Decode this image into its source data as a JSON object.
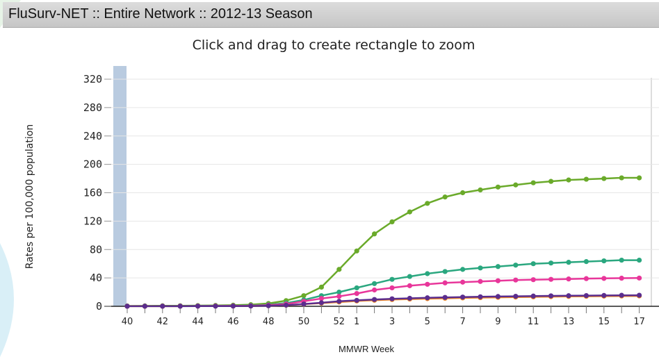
{
  "window": {
    "title": "FluSurv-NET :: Entire Network :: 2012-13 Season"
  },
  "chart_data": {
    "type": "line",
    "subtitle": "Click and drag to create rectangle to zoom",
    "xlabel": "MMWR Week",
    "ylabel": "Rates per 100,000 population",
    "ylim": [
      0,
      320
    ],
    "yticks": [
      0,
      40,
      80,
      120,
      160,
      200,
      240,
      280,
      320
    ],
    "x": [
      40,
      41,
      42,
      43,
      44,
      45,
      46,
      47,
      48,
      49,
      50,
      51,
      52,
      1,
      2,
      3,
      4,
      5,
      6,
      7,
      8,
      9,
      10,
      11,
      12,
      13,
      14,
      15,
      16,
      17
    ],
    "xtick_labels": [
      "40",
      "42",
      "44",
      "46",
      "48",
      "50",
      "52",
      "1",
      "3",
      "5",
      "7",
      "9",
      "11",
      "13",
      "15",
      "17"
    ],
    "grid": true,
    "legend": "none",
    "colors": [
      "#6aaa2a",
      "#2aa77f",
      "#e8369a",
      "#f08a24",
      "#5b2d8e"
    ],
    "series": [
      {
        "values": [
          0.5,
          0.6,
          0.7,
          0.8,
          1.0,
          1.2,
          1.6,
          2.3,
          4,
          8,
          15,
          27,
          52,
          78,
          102,
          119,
          133,
          145,
          154,
          160,
          164,
          168,
          171,
          174,
          176,
          178,
          179,
          180,
          181,
          181
        ]
      },
      {
        "values": [
          0.3,
          0.3,
          0.4,
          0.4,
          0.5,
          0.6,
          0.8,
          1.1,
          2.2,
          4.5,
          9,
          15,
          20,
          26,
          32,
          38,
          42,
          46,
          49,
          52,
          54,
          56,
          58,
          60,
          61,
          62,
          63,
          64,
          65,
          65
        ]
      },
      {
        "values": [
          0.2,
          0.2,
          0.3,
          0.3,
          0.4,
          0.5,
          0.6,
          0.8,
          1.6,
          3.2,
          7,
          11,
          14,
          18,
          23,
          26,
          29,
          31,
          33,
          34,
          35,
          36,
          37,
          37.5,
          38,
          38.5,
          39,
          39.3,
          39.6,
          39.8
        ]
      },
      {
        "values": [
          0.1,
          0.1,
          0.1,
          0.2,
          0.2,
          0.3,
          0.3,
          0.4,
          0.8,
          1.5,
          3,
          4.5,
          6,
          7.5,
          8.5,
          9.5,
          10.2,
          10.8,
          11.3,
          11.8,
          12.2,
          12.6,
          13,
          13.3,
          13.6,
          13.9,
          14.1,
          14.3,
          14.5,
          14.6
        ]
      },
      {
        "values": [
          0.1,
          0.1,
          0.1,
          0.1,
          0.2,
          0.2,
          0.3,
          0.4,
          0.8,
          1.6,
          3.2,
          5,
          7,
          8.4,
          9.6,
          10.6,
          11.3,
          12,
          12.5,
          13,
          13.4,
          13.8,
          14.1,
          14.4,
          14.7,
          14.9,
          15.1,
          15.3,
          15.5,
          15.6
        ]
      }
    ]
  }
}
